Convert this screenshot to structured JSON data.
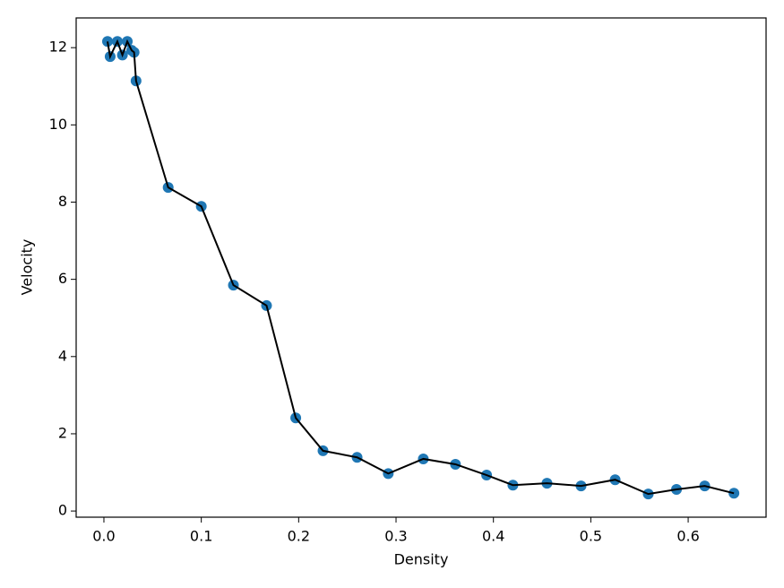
{
  "chart_data": {
    "type": "scatter",
    "x_label": "Density",
    "y_label": "Velocity",
    "x": [
      0.0037,
      0.0064,
      0.0138,
      0.019,
      0.024,
      0.0285,
      0.031,
      0.033,
      0.066,
      0.1,
      0.133,
      0.167,
      0.197,
      0.225,
      0.26,
      0.292,
      0.328,
      0.361,
      0.393,
      0.42,
      0.455,
      0.49,
      0.525,
      0.559,
      0.588,
      0.617,
      0.647
    ],
    "values": [
      12.16,
      11.77,
      12.16,
      11.81,
      12.16,
      11.93,
      11.88,
      11.14,
      8.38,
      7.89,
      5.85,
      5.32,
      2.41,
      1.56,
      1.39,
      0.97,
      1.35,
      1.21,
      0.93,
      0.67,
      0.72,
      0.65,
      0.81,
      0.44,
      0.56,
      0.65,
      0.46
    ],
    "color": "#1f77b4",
    "line_color": "#000000",
    "connect": true,
    "xlim": [
      -0.0285,
      0.68
    ],
    "ylim": [
      -0.16,
      12.77
    ],
    "xticks": [
      {
        "value": 0,
        "label": "0.0"
      },
      0.1,
      0.2,
      0.3,
      0.4,
      0.5,
      0.6
    ],
    "yticks": [
      0,
      2,
      4,
      6,
      8,
      10,
      12
    ]
  }
}
